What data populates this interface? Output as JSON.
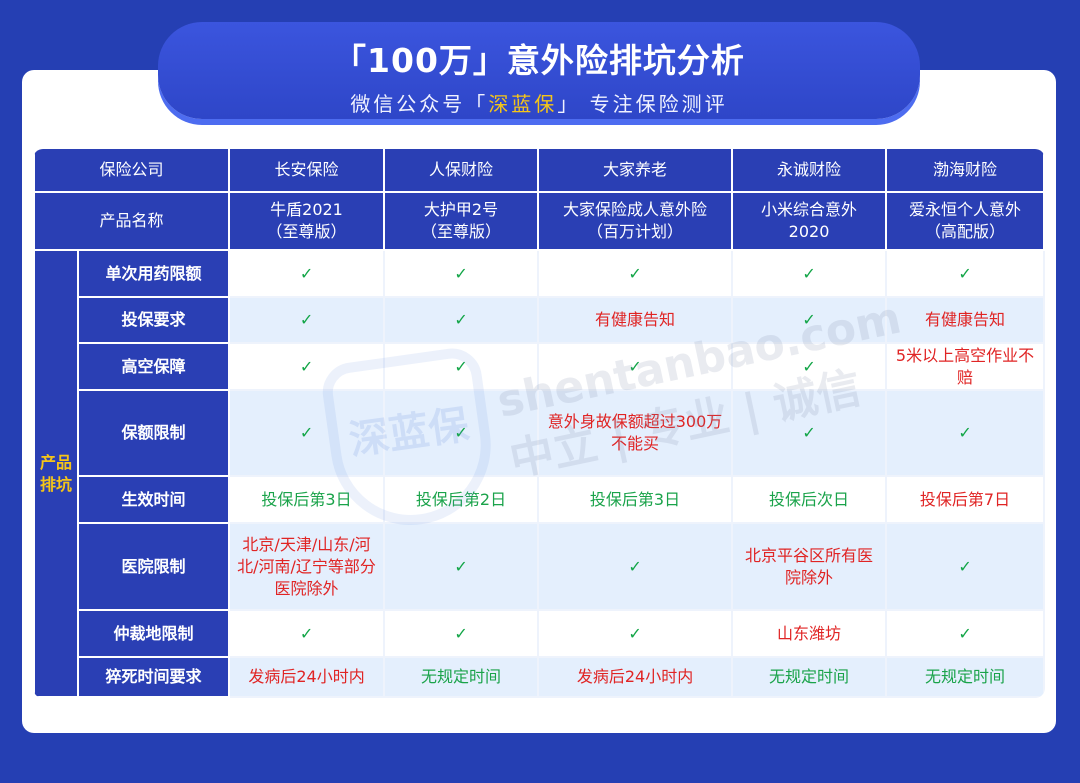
{
  "header": {
    "title": "「100万」意外险排坑分析",
    "subtitle_prefix": "微信公众号「",
    "subtitle_brand": "深蓝保",
    "subtitle_suffix": "」 专注保险测评"
  },
  "table": {
    "company_label": "保险公司",
    "product_label": "产品名称",
    "category_label": "产品排坑",
    "companies": [
      "长安保险",
      "人保财险",
      "大家养老",
      "永诚财险",
      "渤海财险"
    ],
    "products": [
      [
        "牛盾2021",
        "（至尊版）"
      ],
      [
        "大护甲2号",
        "（至尊版）"
      ],
      [
        "大家保险成人意外险",
        "（百万计划）"
      ],
      [
        "小米综合意外",
        "2020"
      ],
      [
        "爱永恒个人意外",
        "（高配版）"
      ]
    ],
    "rows": [
      {
        "label": "单次用药限额",
        "cells": [
          {
            "t": "✓",
            "s": "ok"
          },
          {
            "t": "✓",
            "s": "ok"
          },
          {
            "t": "✓",
            "s": "ok"
          },
          {
            "t": "✓",
            "s": "ok"
          },
          {
            "t": "✓",
            "s": "ok"
          }
        ]
      },
      {
        "label": "投保要求",
        "cells": [
          {
            "t": "✓",
            "s": "ok"
          },
          {
            "t": "✓",
            "s": "ok"
          },
          {
            "t": "有健康告知",
            "s": "red"
          },
          {
            "t": "✓",
            "s": "ok"
          },
          {
            "t": "有健康告知",
            "s": "red"
          }
        ]
      },
      {
        "label": "高空保障",
        "cells": [
          {
            "t": "✓",
            "s": "ok"
          },
          {
            "t": "✓",
            "s": "ok"
          },
          {
            "t": "✓",
            "s": "ok"
          },
          {
            "t": "✓",
            "s": "ok"
          },
          {
            "t": "5米以上高空作业不赔",
            "s": "red"
          }
        ]
      },
      {
        "label": "保额限制",
        "cells": [
          {
            "t": "✓",
            "s": "ok"
          },
          {
            "t": "✓",
            "s": "ok"
          },
          {
            "t": "意外身故保额超过300万不能买",
            "s": "red"
          },
          {
            "t": "✓",
            "s": "ok"
          },
          {
            "t": "✓",
            "s": "ok"
          }
        ]
      },
      {
        "label": "生效时间",
        "cells": [
          {
            "t": "投保后第3日",
            "s": "grn"
          },
          {
            "t": "投保后第2日",
            "s": "grn"
          },
          {
            "t": "投保后第3日",
            "s": "grn"
          },
          {
            "t": "投保后次日",
            "s": "grn"
          },
          {
            "t": "投保后第7日",
            "s": "red"
          }
        ]
      },
      {
        "label": "医院限制",
        "cells": [
          {
            "t": "北京/天津/山东/河北/河南/辽宁等部分医院除外",
            "s": "red"
          },
          {
            "t": "✓",
            "s": "ok"
          },
          {
            "t": "✓",
            "s": "ok"
          },
          {
            "t": "北京平谷区所有医院除外",
            "s": "red"
          },
          {
            "t": "✓",
            "s": "ok"
          }
        ]
      },
      {
        "label": "仲裁地限制",
        "cells": [
          {
            "t": "✓",
            "s": "ok"
          },
          {
            "t": "✓",
            "s": "ok"
          },
          {
            "t": "✓",
            "s": "ok"
          },
          {
            "t": "山东潍坊",
            "s": "red"
          },
          {
            "t": "✓",
            "s": "ok"
          }
        ]
      },
      {
        "label": "猝死时间要求",
        "cells": [
          {
            "t": "发病后24小时内",
            "s": "red"
          },
          {
            "t": "无规定时间",
            "s": "grn"
          },
          {
            "t": "发病后24小时内",
            "s": "red"
          },
          {
            "t": "无规定时间",
            "s": "grn"
          },
          {
            "t": "无规定时间",
            "s": "grn"
          }
        ]
      }
    ]
  },
  "watermark": {
    "logo": "深蓝保",
    "site": "shentanbao.com",
    "slogan": "中立 | 专业 | 诚信"
  },
  "colors": {
    "background": "#253fb3",
    "header_cell": "#2a3fb4",
    "accent_yellow": "#f5c518",
    "good": "#1aa34a",
    "bad": "#e02424",
    "row_alt": "#e4effd"
  }
}
